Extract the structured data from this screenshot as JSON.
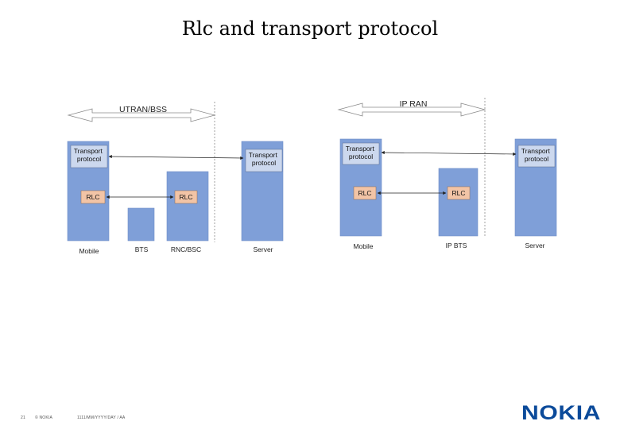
{
  "title": "Rlc and transport protocol",
  "colors": {
    "node_fill": "#7f9fd8",
    "node_stroke": "#6e8ec9",
    "transport_fill": "#ccd8ee",
    "rlc_fill": "#f2c4a6",
    "logo": "#0b4a9a"
  },
  "left_diagram": {
    "domain_label": "UTRAN/BSS",
    "nodes": [
      {
        "label": "Mobile"
      },
      {
        "label": "BTS"
      },
      {
        "label": "RNC/BSC"
      },
      {
        "label": "Server"
      }
    ],
    "transport_left": "Transport protocol",
    "transport_right": "Transport protocol",
    "rlc_left": "RLC",
    "rlc_right": "RLC"
  },
  "right_diagram": {
    "domain_label": "IP RAN",
    "nodes": [
      {
        "label": "Mobile"
      },
      {
        "label": "IP BTS"
      },
      {
        "label": "Server"
      }
    ],
    "transport_left": "Transport protocol",
    "transport_right": "Transport protocol",
    "rlc_left": "RLC",
    "rlc_right": "RLC"
  },
  "footer": {
    "page_number": "21",
    "copyright": "© NOKIA",
    "doc_ref": "1111/MM/YYYY/DAY / AA"
  },
  "logo_icon": "nokia-logo",
  "logo_text": "NOKIA"
}
